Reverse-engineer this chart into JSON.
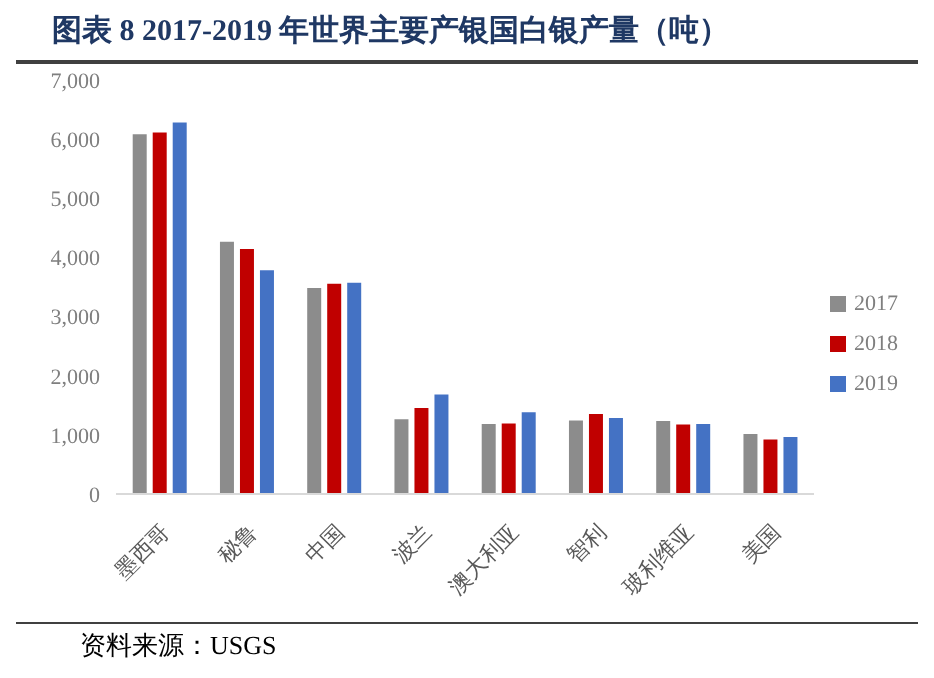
{
  "chart_data": {
    "type": "bar",
    "title": "图表 8 2017-2019 年世界主要产银国白银产量（吨）",
    "categories": [
      "墨西哥",
      "秘鲁",
      "中国",
      "波兰",
      "澳大利亚",
      "智利",
      "玻利维亚",
      "美国"
    ],
    "series": [
      {
        "name": "2017",
        "color": "#8c8c8c",
        "values": [
          6100,
          4280,
          3500,
          1280,
          1200,
          1260,
          1250,
          1030
        ]
      },
      {
        "name": "2018",
        "color": "#c00000",
        "values": [
          6130,
          4160,
          3570,
          1470,
          1210,
          1370,
          1190,
          940
        ]
      },
      {
        "name": "2019",
        "color": "#4472c4",
        "values": [
          6300,
          3800,
          3590,
          1700,
          1400,
          1300,
          1200,
          980
        ]
      }
    ],
    "ylim": [
      0,
      7000
    ],
    "yticks": [
      0,
      {
        "value": 1000,
        "label": "1,000"
      },
      {
        "value": 2000,
        "label": "2,000"
      },
      {
        "value": 3000,
        "label": "3,000"
      },
      {
        "value": 4000,
        "label": "4,000"
      },
      {
        "value": 5000,
        "label": "5,000"
      },
      {
        "value": 6000,
        "label": "6,000"
      },
      {
        "value": 7000,
        "label": "7,000"
      }
    ],
    "grid": false,
    "legend": "right",
    "annotations": [
      "资料来源：USGS"
    ]
  }
}
